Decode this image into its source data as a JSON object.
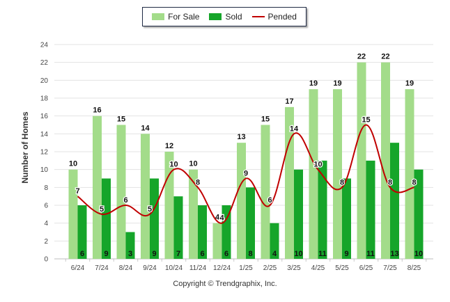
{
  "chart_data": {
    "type": "bar",
    "title": "",
    "xlabel": "",
    "ylabel": "Number of Homes",
    "ylim": [
      0,
      24
    ],
    "y_ticks": [
      0,
      2,
      4,
      6,
      8,
      10,
      12,
      14,
      16,
      18,
      20,
      22,
      24
    ],
    "grid": true,
    "legend_position": "top-center",
    "categories": [
      "6/24",
      "7/24",
      "8/24",
      "9/24",
      "10/24",
      "11/24",
      "12/24",
      "1/25",
      "2/25",
      "3/25",
      "4/25",
      "5/25",
      "6/25",
      "7/25",
      "8/25"
    ],
    "series": [
      {
        "name": "For Sale",
        "type": "bar",
        "color": "#a3dc8a",
        "values": [
          10,
          16,
          15,
          14,
          12,
          10,
          4,
          13,
          15,
          17,
          19,
          19,
          22,
          22,
          19
        ]
      },
      {
        "name": "Sold",
        "type": "bar",
        "color": "#16a52a",
        "values": [
          6,
          9,
          3,
          9,
          7,
          6,
          6,
          8,
          4,
          10,
          11,
          9,
          11,
          13,
          10
        ]
      },
      {
        "name": "Pended",
        "type": "line",
        "color": "#c00000",
        "values": [
          7,
          5,
          6,
          5,
          10,
          8,
          4,
          9,
          6,
          14,
          10,
          8,
          15,
          8,
          8
        ]
      }
    ]
  },
  "footer": {
    "copyright": "Copyright © Trendgraphix, Inc."
  }
}
